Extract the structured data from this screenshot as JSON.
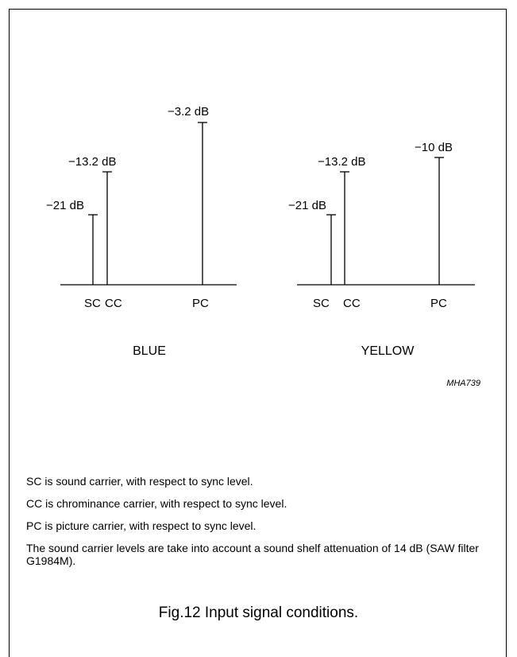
{
  "panels": [
    {
      "title": "BLUE",
      "carriers": [
        {
          "label": "SC",
          "level_db": -21,
          "level_text": "−21 dB"
        },
        {
          "label": "CC",
          "level_db": -13.2,
          "level_text": "−13.2 dB"
        },
        {
          "label": "PC",
          "level_db": -3.2,
          "level_text": "−3.2 dB"
        }
      ]
    },
    {
      "title": "YELLOW",
      "carriers": [
        {
          "label": "SC",
          "level_db": -21,
          "level_text": "−21 dB"
        },
        {
          "label": "CC",
          "level_db": -13.2,
          "level_text": "−13.2 dB"
        },
        {
          "label": "PC",
          "level_db": -10,
          "level_text": "−10 dB"
        }
      ]
    }
  ],
  "figure_code": "MHA739",
  "notes": [
    "SC is sound carrier, with respect to sync level.",
    "CC is chrominance carrier, with respect to sync level.",
    "PC is picture carrier, with respect to sync level.",
    "The sound carrier levels are take into account a sound shelf attenuation of 14 dB (SAW filter G1984M)."
  ],
  "caption": "Fig.12  Input signal conditions."
}
